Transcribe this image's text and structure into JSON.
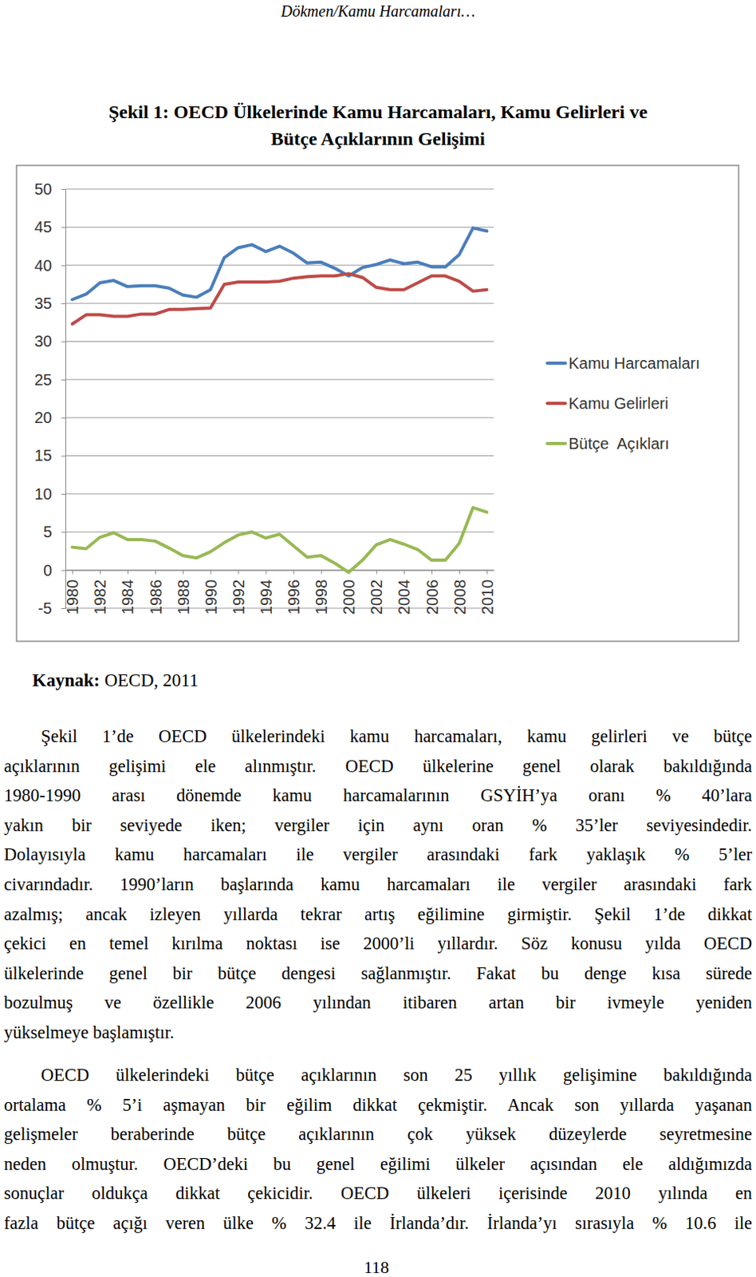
{
  "header": "Dökmen/Kamu Harcamaları…",
  "figure_title": [
    "Şekil 1: OECD Ülkelerinde Kamu Harcamaları, Kamu Gelirleri ve",
    "Bütçe Açıklarının Gelişimi"
  ],
  "chart_data": {
    "type": "line",
    "x": [
      1980,
      1981,
      1982,
      1983,
      1984,
      1985,
      1986,
      1987,
      1988,
      1989,
      1990,
      1991,
      1992,
      1993,
      1994,
      1995,
      1996,
      1997,
      1998,
      1999,
      2000,
      2001,
      2002,
      2003,
      2004,
      2005,
      2006,
      2007,
      2008,
      2009,
      2010
    ],
    "xlim": [
      1979.5,
      2010.5
    ],
    "xticks": [
      1980,
      1982,
      1984,
      1986,
      1988,
      1990,
      1992,
      1994,
      1996,
      1998,
      2000,
      2002,
      2004,
      2006,
      2008,
      2010
    ],
    "ylim": [
      -5,
      50
    ],
    "yticks": [
      -5,
      0,
      5,
      10,
      15,
      20,
      25,
      30,
      35,
      40,
      45,
      50
    ],
    "grid": true,
    "legend": "right",
    "series": [
      {
        "name": "Kamu Harcamaları",
        "color": "#4a7ebb",
        "values": [
          35.5,
          36.2,
          37.7,
          38.0,
          37.2,
          37.3,
          37.3,
          37.0,
          36.1,
          35.8,
          36.8,
          41.0,
          42.3,
          42.7,
          41.8,
          42.5,
          41.6,
          40.3,
          40.4,
          39.6,
          38.6,
          39.7,
          40.1,
          40.7,
          40.2,
          40.4,
          39.8,
          39.8,
          41.4,
          44.9,
          44.5
        ]
      },
      {
        "name": "Kamu Gelirleri",
        "color": "#be4b48",
        "values": [
          32.3,
          33.5,
          33.5,
          33.3,
          33.3,
          33.6,
          33.6,
          34.2,
          34.2,
          34.3,
          34.4,
          37.5,
          37.8,
          37.8,
          37.8,
          37.9,
          38.3,
          38.5,
          38.6,
          38.6,
          38.9,
          38.4,
          37.1,
          36.8,
          36.8,
          37.7,
          38.6,
          38.6,
          37.9,
          36.6,
          36.8
        ]
      },
      {
        "name": "Bütçe  Açıkları",
        "color": "#98b954",
        "values": [
          3.0,
          2.8,
          4.3,
          4.9,
          4.0,
          4.0,
          3.8,
          2.9,
          1.9,
          1.6,
          2.4,
          3.6,
          4.6,
          5.0,
          4.2,
          4.7,
          3.2,
          1.7,
          1.9,
          0.9,
          -0.3,
          1.3,
          3.3,
          4.0,
          3.4,
          2.7,
          1.3,
          1.3,
          3.5,
          8.2,
          7.6
        ]
      }
    ]
  },
  "source": {
    "label": "Kaynak:",
    "text": "OECD, 2011"
  },
  "paragraphs": [
    {
      "lines": [
        "Şekil 1’de OECD ülkelerindeki kamu harcamaları, kamu gelirleri ve bütçe",
        "açıklarının gelişimi ele alınmıştır. OECD ülkelerine genel olarak bakıldığında",
        "1980-1990 arası dönemde kamu harcamalarının GSYİH’ya oranı % 40’lara",
        "yakın bir seviyede iken; vergiler için aynı oran % 35’ler seviyesindedir.",
        "Dolayısıyla kamu harcamaları ile vergiler arasındaki fark yaklaşık % 5’ler",
        "civarındadır. 1990’ların başlarında kamu harcamaları ile vergiler arasındaki fark",
        "azalmış; ancak izleyen yıllarda tekrar artış eğilimine girmiştir. Şekil 1’de dikkat",
        "çekici en temel kırılma noktası ise 2000’li yıllardır. Söz konusu yılda OECD",
        "ülkelerinde genel bir bütçe dengesi sağlanmıştır. Fakat bu denge kısa sürede",
        "bozulmuş ve özellikle 2006 yılından itibaren artan bir ivmeyle yeniden",
        "yükselmeye başlamıştır."
      ]
    },
    {
      "lines": [
        "OECD ülkelerindeki bütçe açıklarının son 25 yıllık gelişimine bakıldığında",
        "ortalama % 5’i aşmayan bir eğilim dikkat çekmiştir. Ancak son yıllarda yaşanan",
        "gelişmeler beraberinde bütçe açıklarının çok yüksek düzeylerde seyretmesine",
        "neden olmuştur. OECD’deki bu genel eğilimi ülkeler açısından ele aldığımızda",
        "sonuçlar oldukça dikkat çekicidir. OECD ülkeleri içerisinde 2010 yılında en",
        "fazla bütçe açığı veren ülke % 32.4 ile İrlanda’dır. İrlanda’yı sırasıyla % 10.6 ile"
      ]
    }
  ],
  "page_number": "118"
}
